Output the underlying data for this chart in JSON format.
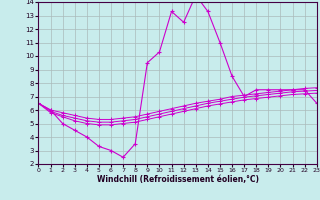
{
  "xlabel": "Windchill (Refroidissement éolien,°C)",
  "xlim": [
    0,
    23
  ],
  "ylim": [
    2,
    14
  ],
  "xticks": [
    0,
    1,
    2,
    3,
    4,
    5,
    6,
    7,
    8,
    9,
    10,
    11,
    12,
    13,
    14,
    15,
    16,
    17,
    18,
    19,
    20,
    21,
    22,
    23
  ],
  "yticks": [
    2,
    3,
    4,
    5,
    6,
    7,
    8,
    9,
    10,
    11,
    12,
    13,
    14
  ],
  "background_color": "#c8ecec",
  "grid_color": "#aabbbb",
  "line_color": "#cc00cc",
  "hours": [
    0,
    1,
    2,
    3,
    4,
    5,
    6,
    7,
    8,
    9,
    10,
    11,
    12,
    13,
    14,
    15,
    16,
    17,
    18,
    19,
    20,
    21,
    22,
    23
  ],
  "line1": [
    6.5,
    6.0,
    5.0,
    4.5,
    4.0,
    3.3,
    3.0,
    2.5,
    3.5,
    9.5,
    10.3,
    13.3,
    12.5,
    14.5,
    13.3,
    11.0,
    8.5,
    7.0,
    7.5,
    7.5,
    7.5,
    7.5,
    7.5,
    6.5
  ],
  "line2": [
    6.5,
    6.0,
    5.8,
    5.6,
    5.4,
    5.3,
    5.3,
    5.4,
    5.5,
    5.7,
    5.9,
    6.1,
    6.3,
    6.5,
    6.65,
    6.8,
    7.0,
    7.1,
    7.2,
    7.3,
    7.4,
    7.5,
    7.6,
    7.65
  ],
  "line3": [
    6.5,
    5.9,
    5.6,
    5.4,
    5.2,
    5.1,
    5.1,
    5.2,
    5.3,
    5.5,
    5.7,
    5.9,
    6.1,
    6.3,
    6.5,
    6.65,
    6.8,
    6.95,
    7.05,
    7.15,
    7.25,
    7.35,
    7.4,
    7.45
  ],
  "line4": [
    6.5,
    5.8,
    5.5,
    5.2,
    5.0,
    4.9,
    4.9,
    5.0,
    5.1,
    5.3,
    5.5,
    5.7,
    5.9,
    6.1,
    6.3,
    6.45,
    6.6,
    6.75,
    6.85,
    6.95,
    7.05,
    7.15,
    7.2,
    7.25
  ]
}
